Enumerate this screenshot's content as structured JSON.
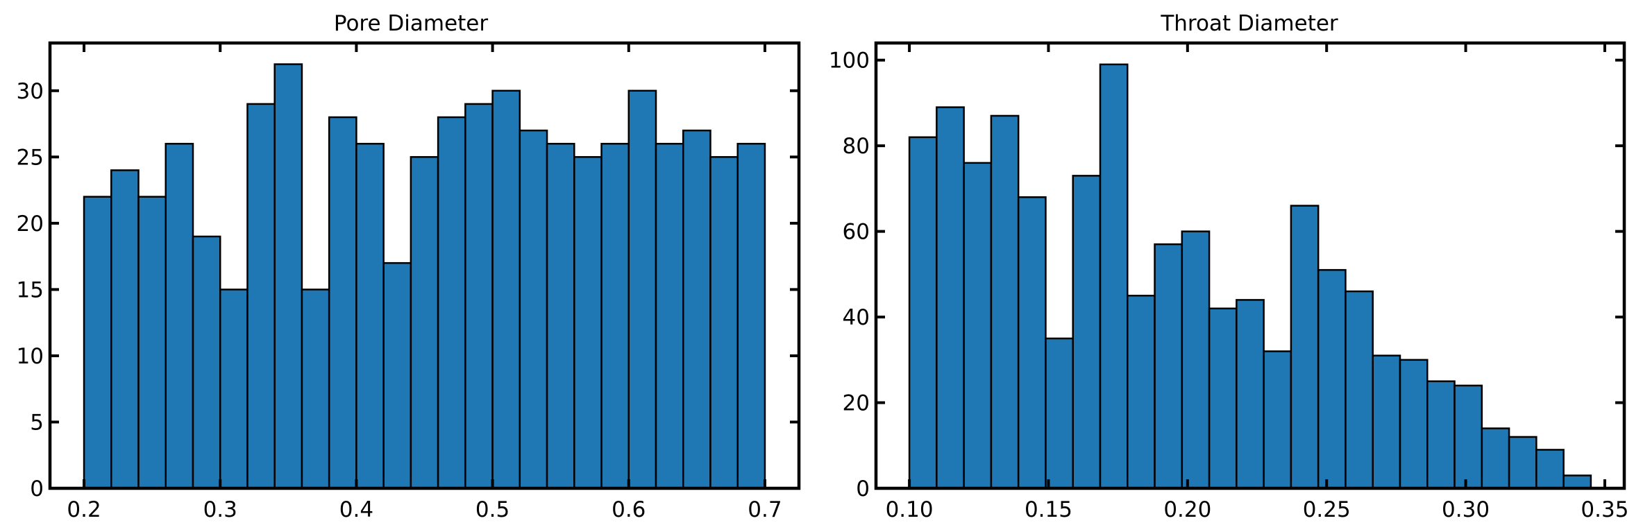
{
  "colors": {
    "bar_fill": "#1f77b4",
    "bar_edge": "#000000",
    "axis": "#000000",
    "background": "#ffffff"
  },
  "chart_data": [
    {
      "type": "bar",
      "title": "Pore Diameter",
      "xlabel": "",
      "ylabel": "",
      "bin_edges": [
        0.2,
        0.22,
        0.24,
        0.26,
        0.28,
        0.3,
        0.32,
        0.34,
        0.36,
        0.38,
        0.4,
        0.42,
        0.44,
        0.46,
        0.48,
        0.5,
        0.52,
        0.54,
        0.56,
        0.58,
        0.6,
        0.62,
        0.64,
        0.66,
        0.68,
        0.7
      ],
      "values": [
        22,
        24,
        22,
        26,
        19,
        15,
        29,
        32,
        15,
        28,
        26,
        17,
        25,
        28,
        29,
        30,
        27,
        26,
        25,
        26,
        30,
        26,
        27,
        25,
        26
      ],
      "xlim": [
        0.175,
        0.725
      ],
      "ylim": [
        0,
        33.6
      ],
      "xticks": [
        0.2,
        0.3,
        0.4,
        0.5,
        0.6,
        0.7
      ],
      "xtick_labels": [
        "0.2",
        "0.3",
        "0.4",
        "0.5",
        "0.6",
        "0.7"
      ],
      "yticks": [
        0,
        5,
        10,
        15,
        20,
        25,
        30
      ],
      "ytick_labels": [
        "0",
        "5",
        "10",
        "15",
        "20",
        "25",
        "30"
      ],
      "grid": false,
      "legend": "none"
    },
    {
      "type": "bar",
      "title": "Throat Diameter",
      "xlabel": "",
      "ylabel": "",
      "bin_edges": [
        0.1,
        0.1098,
        0.1196,
        0.1294,
        0.1392,
        0.149,
        0.1588,
        0.1686,
        0.1784,
        0.1882,
        0.198,
        0.2078,
        0.2176,
        0.2274,
        0.2372,
        0.247,
        0.2568,
        0.2666,
        0.2764,
        0.2862,
        0.296,
        0.3058,
        0.3156,
        0.3254,
        0.3352,
        0.345
      ],
      "values": [
        82,
        89,
        76,
        87,
        68,
        35,
        73,
        99,
        45,
        57,
        60,
        42,
        44,
        32,
        66,
        51,
        46,
        31,
        30,
        25,
        24,
        14,
        12,
        9,
        3
      ],
      "xlim": [
        0.088,
        0.357
      ],
      "ylim": [
        0,
        104
      ],
      "xticks": [
        0.1,
        0.15,
        0.2,
        0.25,
        0.3,
        0.35
      ],
      "xtick_labels": [
        "0.10",
        "0.15",
        "0.20",
        "0.25",
        "0.30",
        "0.35"
      ],
      "yticks": [
        0,
        20,
        40,
        60,
        80,
        100
      ],
      "ytick_labels": [
        "0",
        "20",
        "40",
        "60",
        "80",
        "100"
      ],
      "grid": false,
      "legend": "none"
    }
  ]
}
